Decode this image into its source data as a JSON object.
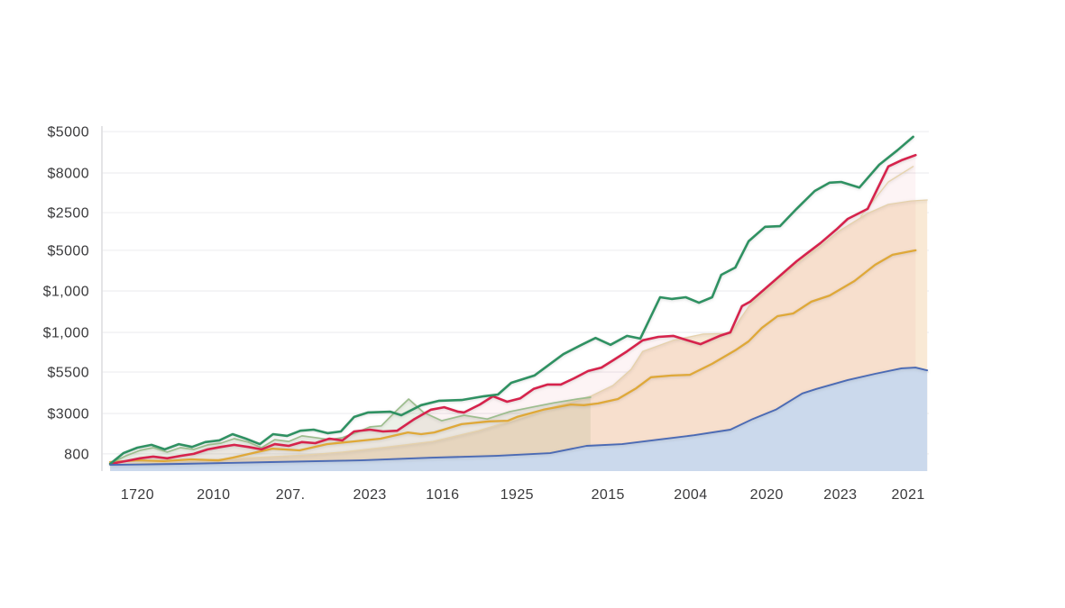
{
  "chart_data": {
    "type": "line",
    "description": "Multi-series financial line/area chart, no title or legend visible",
    "background": "#ffffff",
    "grid": {
      "show_horizontal": true,
      "color": "#f2f2f4",
      "axis_line_color": "#dddddf",
      "label_color": "#3a3a3c"
    },
    "y_ticks": [
      {
        "label": "$5000",
        "v": 98.4
      },
      {
        "label": "$8000",
        "v": 86.4
      },
      {
        "label": "$2500",
        "v": 74.9
      },
      {
        "label": "$5000",
        "v": 64.0
      },
      {
        "label": "$1,000",
        "v": 52.2
      },
      {
        "label": "$1,000",
        "v": 40.2
      },
      {
        "label": "$5500",
        "v": 28.7
      },
      {
        "label": "$3000",
        "v": 16.7
      },
      {
        "label": "800",
        "v": 5.0
      }
    ],
    "x_ticks": [
      {
        "label": "1720",
        "x": 4.3
      },
      {
        "label": "2010",
        "x": 13.5
      },
      {
        "label": "207.",
        "x": 22.8
      },
      {
        "label": "2023",
        "x": 32.4
      },
      {
        "label": "1016",
        "x": 41.2
      },
      {
        "label": "1925",
        "x": 50.2
      },
      {
        "label": "2015",
        "x": 61.2
      },
      {
        "label": "2004",
        "x": 71.2
      },
      {
        "label": "2020",
        "x": 80.4
      },
      {
        "label": "2023",
        "x": 89.3
      },
      {
        "label": "2021",
        "x": 97.5
      }
    ],
    "series": [
      {
        "name": "peach-area",
        "type": "area",
        "fill": "#f9e9d5",
        "stroke": "#e5d1ab",
        "width": 1.3,
        "points": [
          [
            1.0,
            1.8
          ],
          [
            9.5,
            2.9
          ],
          [
            18.2,
            3.9
          ],
          [
            24.8,
            4.7
          ],
          [
            29.1,
            5.5
          ],
          [
            34.6,
            7.0
          ],
          [
            40.0,
            8.6
          ],
          [
            45.5,
            11.7
          ],
          [
            50.2,
            15.1
          ],
          [
            55.3,
            19.1
          ],
          [
            59.1,
            21.7
          ],
          [
            61.8,
            24.8
          ],
          [
            64.0,
            29.5
          ],
          [
            65.4,
            34.7
          ],
          [
            69.1,
            37.9
          ],
          [
            72.7,
            39.7
          ],
          [
            76.0,
            39.9
          ],
          [
            78.4,
            48.3
          ],
          [
            81.5,
            54.8
          ],
          [
            84.0,
            60.1
          ],
          [
            86.9,
            65.3
          ],
          [
            89.1,
            69.5
          ],
          [
            92.6,
            74.7
          ],
          [
            95.1,
            77.3
          ],
          [
            97.8,
            78.3
          ],
          [
            99.8,
            78.6
          ]
        ]
      },
      {
        "name": "tan-line",
        "type": "line",
        "stroke": "#e6d3ae",
        "width": 1.4,
        "points": [
          [
            91.8,
            73.9
          ],
          [
            95.1,
            83.8
          ],
          [
            98.1,
            88.3
          ]
        ]
      },
      {
        "name": "orange-line",
        "type": "line",
        "stroke": "#dfa838",
        "width": 2.3,
        "points": [
          [
            1.0,
            2.6
          ],
          [
            4.3,
            3.1
          ],
          [
            7.5,
            2.9
          ],
          [
            10.8,
            3.4
          ],
          [
            14.1,
            3.1
          ],
          [
            15.8,
            3.9
          ],
          [
            17.3,
            4.7
          ],
          [
            20.6,
            6.5
          ],
          [
            23.9,
            6.0
          ],
          [
            27.2,
            7.8
          ],
          [
            30.4,
            8.6
          ],
          [
            33.7,
            9.4
          ],
          [
            37.0,
            11.2
          ],
          [
            38.6,
            10.7
          ],
          [
            40.2,
            11.2
          ],
          [
            43.5,
            13.6
          ],
          [
            46.8,
            14.4
          ],
          [
            49.1,
            14.6
          ],
          [
            50.2,
            15.7
          ],
          [
            53.4,
            17.8
          ],
          [
            56.7,
            19.3
          ],
          [
            58.3,
            19.1
          ],
          [
            60.0,
            19.6
          ],
          [
            62.4,
            20.9
          ],
          [
            64.6,
            24.0
          ],
          [
            66.4,
            27.2
          ],
          [
            68.9,
            27.7
          ],
          [
            71.1,
            27.9
          ],
          [
            73.8,
            31.1
          ],
          [
            76.6,
            35.0
          ],
          [
            78.2,
            37.6
          ],
          [
            79.8,
            41.5
          ],
          [
            81.7,
            44.9
          ],
          [
            83.6,
            45.7
          ],
          [
            85.8,
            49.1
          ],
          [
            88.0,
            50.9
          ],
          [
            91.0,
            55.1
          ],
          [
            93.5,
            59.8
          ],
          [
            95.6,
            62.7
          ],
          [
            98.4,
            64.0
          ]
        ]
      },
      {
        "name": "sage-line",
        "type": "line",
        "stroke": "#9cbd8d",
        "width": 1.7,
        "shade": "rgba(150,175,130,0.18)",
        "points": [
          [
            1.0,
            2.3
          ],
          [
            2.9,
            4.4
          ],
          [
            4.6,
            6.0
          ],
          [
            6.2,
            6.8
          ],
          [
            7.9,
            5.5
          ],
          [
            9.5,
            6.8
          ],
          [
            11.1,
            6.3
          ],
          [
            12.8,
            7.6
          ],
          [
            14.4,
            8.1
          ],
          [
            16.0,
            9.4
          ],
          [
            17.7,
            8.4
          ],
          [
            19.3,
            6.8
          ],
          [
            20.9,
            9.1
          ],
          [
            22.6,
            8.6
          ],
          [
            24.2,
            10.2
          ],
          [
            25.8,
            9.7
          ],
          [
            27.5,
            9.1
          ],
          [
            29.1,
            9.7
          ],
          [
            30.8,
            11.2
          ],
          [
            32.4,
            12.8
          ],
          [
            33.8,
            13.1
          ],
          [
            35.4,
            17.0
          ],
          [
            37.1,
            20.9
          ],
          [
            38.9,
            17.0
          ],
          [
            41.1,
            14.6
          ],
          [
            43.8,
            16.2
          ],
          [
            46.6,
            15.1
          ],
          [
            49.3,
            17.2
          ],
          [
            52.0,
            18.5
          ],
          [
            54.7,
            19.8
          ],
          [
            57.5,
            20.9
          ],
          [
            59.1,
            21.4
          ]
        ]
      },
      {
        "name": "red-line",
        "type": "line",
        "stroke": "#d6234c",
        "width": 2.6,
        "shade": "rgba(214,60,90,0.06)",
        "points": [
          [
            1.0,
            2.1
          ],
          [
            2.9,
            2.9
          ],
          [
            4.6,
            3.7
          ],
          [
            6.2,
            4.2
          ],
          [
            7.9,
            3.7
          ],
          [
            9.5,
            4.4
          ],
          [
            11.1,
            5.0
          ],
          [
            12.8,
            6.3
          ],
          [
            14.4,
            7.0
          ],
          [
            16.0,
            7.6
          ],
          [
            17.7,
            7.0
          ],
          [
            19.3,
            6.3
          ],
          [
            20.9,
            7.8
          ],
          [
            22.6,
            7.3
          ],
          [
            24.2,
            8.4
          ],
          [
            25.8,
            8.1
          ],
          [
            27.5,
            9.4
          ],
          [
            29.1,
            8.9
          ],
          [
            30.5,
            11.5
          ],
          [
            32.4,
            12.0
          ],
          [
            34.0,
            11.5
          ],
          [
            35.7,
            11.7
          ],
          [
            37.8,
            15.1
          ],
          [
            39.8,
            17.8
          ],
          [
            41.4,
            18.5
          ],
          [
            43.1,
            17.2
          ],
          [
            43.8,
            17.0
          ],
          [
            45.7,
            19.3
          ],
          [
            47.3,
            21.7
          ],
          [
            49.0,
            20.1
          ],
          [
            50.6,
            21.1
          ],
          [
            52.2,
            23.8
          ],
          [
            53.9,
            25.1
          ],
          [
            55.5,
            25.1
          ],
          [
            57.1,
            26.9
          ],
          [
            58.8,
            29.0
          ],
          [
            60.4,
            30.0
          ],
          [
            61.8,
            32.1
          ],
          [
            63.5,
            34.7
          ],
          [
            65.4,
            37.9
          ],
          [
            67.3,
            38.9
          ],
          [
            69.1,
            39.2
          ],
          [
            70.8,
            37.9
          ],
          [
            72.4,
            36.8
          ],
          [
            74.7,
            39.2
          ],
          [
            76.0,
            40.2
          ],
          [
            77.4,
            47.8
          ],
          [
            78.4,
            49.1
          ],
          [
            81.5,
            55.6
          ],
          [
            84.0,
            60.8
          ],
          [
            86.9,
            66.1
          ],
          [
            88.8,
            70.0
          ],
          [
            90.2,
            73.1
          ],
          [
            92.6,
            76.0
          ],
          [
            95.1,
            88.3
          ],
          [
            96.7,
            90.1
          ],
          [
            98.4,
            91.6
          ]
        ]
      },
      {
        "name": "green-line",
        "type": "line",
        "stroke": "#2f9162",
        "width": 2.6,
        "points": [
          [
            1.0,
            2.1
          ],
          [
            2.6,
            5.2
          ],
          [
            4.3,
            6.8
          ],
          [
            6.0,
            7.6
          ],
          [
            7.6,
            6.3
          ],
          [
            9.3,
            7.8
          ],
          [
            10.9,
            7.0
          ],
          [
            12.5,
            8.4
          ],
          [
            14.2,
            8.9
          ],
          [
            15.8,
            10.7
          ],
          [
            17.4,
            9.4
          ],
          [
            19.1,
            7.8
          ],
          [
            20.7,
            10.7
          ],
          [
            22.4,
            10.2
          ],
          [
            24.0,
            11.7
          ],
          [
            25.6,
            12.0
          ],
          [
            27.3,
            11.0
          ],
          [
            28.9,
            11.5
          ],
          [
            30.5,
            15.7
          ],
          [
            32.2,
            17.0
          ],
          [
            34.9,
            17.2
          ],
          [
            36.2,
            16.2
          ],
          [
            38.6,
            19.1
          ],
          [
            40.8,
            20.4
          ],
          [
            43.5,
            20.6
          ],
          [
            46.2,
            21.7
          ],
          [
            47.9,
            22.2
          ],
          [
            49.5,
            25.6
          ],
          [
            52.3,
            27.7
          ],
          [
            55.8,
            33.9
          ],
          [
            58.0,
            36.6
          ],
          [
            59.7,
            38.6
          ],
          [
            61.5,
            36.6
          ],
          [
            63.5,
            39.2
          ],
          [
            65.1,
            38.4
          ],
          [
            67.5,
            50.4
          ],
          [
            68.9,
            49.9
          ],
          [
            70.6,
            50.4
          ],
          [
            72.2,
            48.8
          ],
          [
            73.8,
            50.4
          ],
          [
            74.9,
            56.9
          ],
          [
            76.6,
            59.0
          ],
          [
            78.2,
            66.6
          ],
          [
            80.2,
            70.8
          ],
          [
            82.0,
            71.0
          ],
          [
            84.0,
            76.0
          ],
          [
            86.2,
            81.2
          ],
          [
            88.0,
            83.6
          ],
          [
            89.4,
            83.8
          ],
          [
            91.6,
            82.2
          ],
          [
            94.0,
            88.8
          ],
          [
            96.2,
            93.0
          ],
          [
            98.1,
            96.9
          ]
        ]
      },
      {
        "name": "blue-area",
        "type": "area",
        "fill": "#cbd9ec",
        "stroke": "#4b6ab4",
        "width": 1.9,
        "points": [
          [
            1.0,
            1.8
          ],
          [
            9.5,
            2.1
          ],
          [
            20.4,
            2.6
          ],
          [
            31.3,
            3.1
          ],
          [
            40.0,
            3.9
          ],
          [
            47.7,
            4.4
          ],
          [
            54.2,
            5.2
          ],
          [
            58.6,
            7.3
          ],
          [
            62.9,
            7.8
          ],
          [
            67.3,
            9.1
          ],
          [
            71.6,
            10.4
          ],
          [
            76.0,
            12.0
          ],
          [
            78.7,
            15.1
          ],
          [
            81.5,
            17.8
          ],
          [
            84.7,
            22.5
          ],
          [
            86.4,
            23.8
          ],
          [
            90.2,
            26.4
          ],
          [
            93.5,
            28.2
          ],
          [
            96.7,
            29.8
          ],
          [
            98.4,
            30.0
          ],
          [
            99.8,
            29.2
          ]
        ]
      }
    ]
  }
}
